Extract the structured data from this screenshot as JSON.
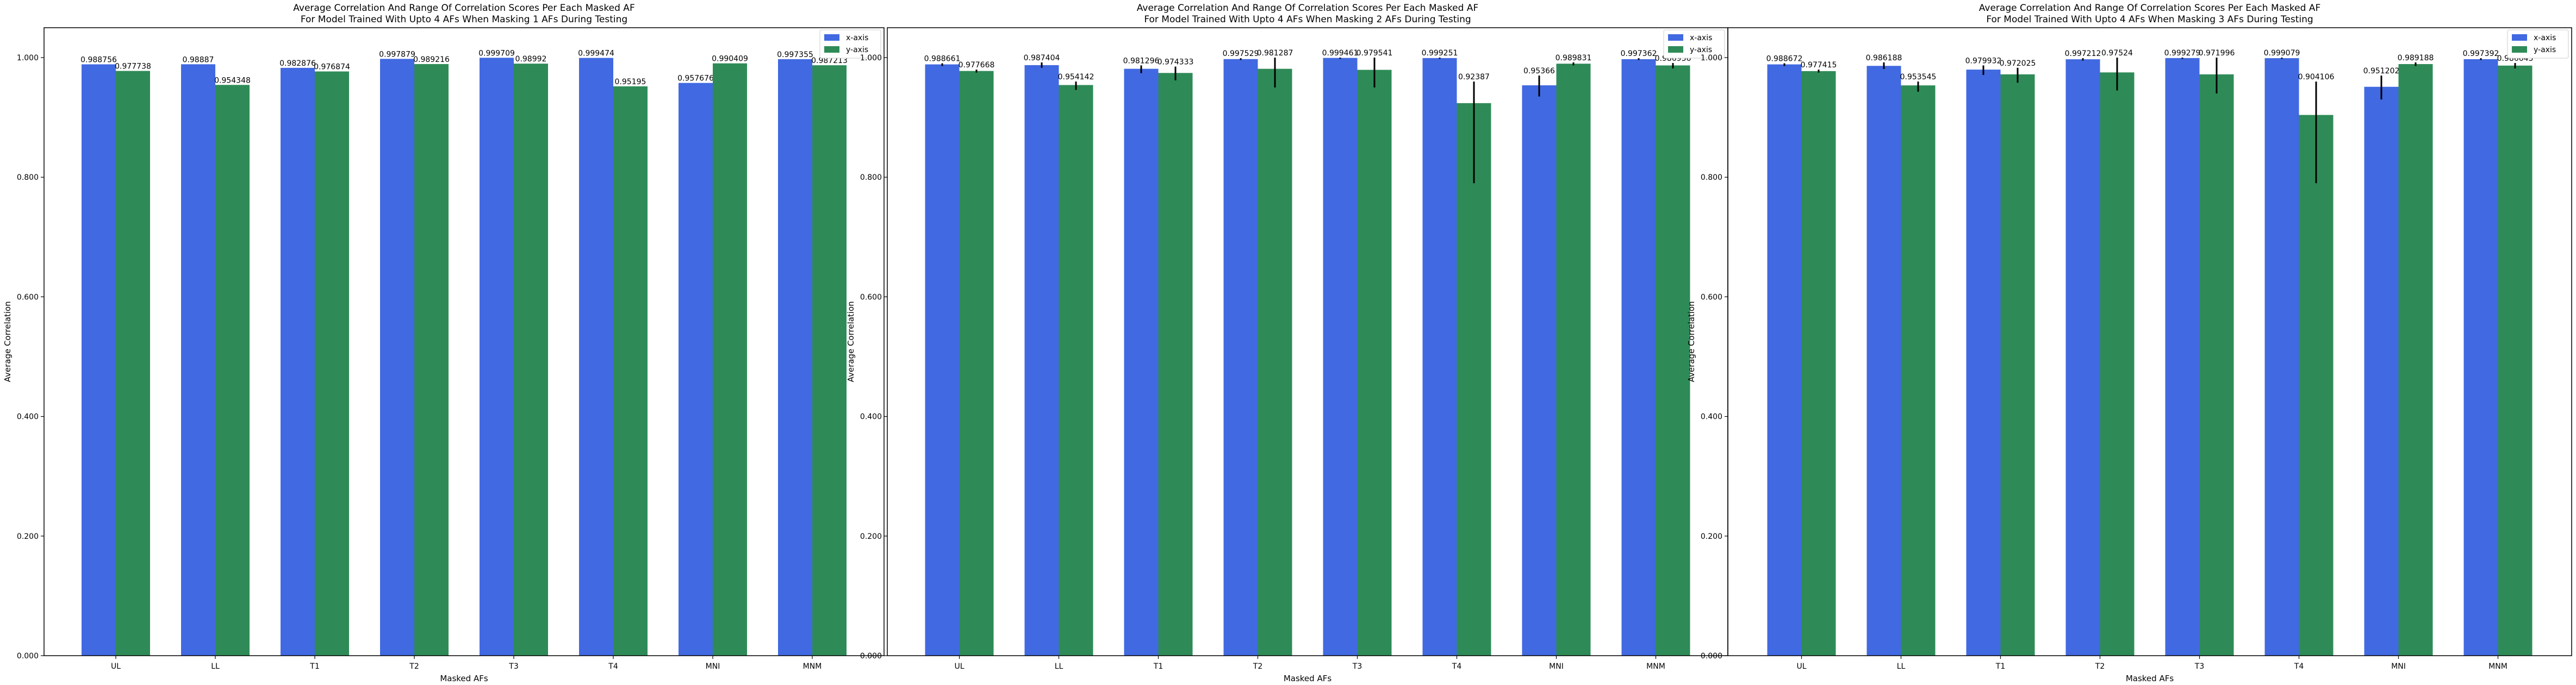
{
  "colors": {
    "x_axis": "#4169e1",
    "y_axis": "#2e8b57",
    "error": "#000000"
  },
  "chart_data": [
    {
      "type": "bar",
      "title_line1": "Average Correlation And Range Of Correlation Scores Per Each Masked AF",
      "title_line2": "For Model Trained With Upto 4 AFs When Masking 1 AFs During Testing",
      "xlabel": "Masked AFs",
      "ylabel": "Average Correlation",
      "ylim": [
        0,
        1.05
      ],
      "yticks": [
        "0.000",
        "0.200",
        "0.400",
        "0.600",
        "0.800",
        "1.000"
      ],
      "categories": [
        "UL",
        "LL",
        "T1",
        "T2",
        "T3",
        "T4",
        "MNI",
        "MNM"
      ],
      "legend": "top-right",
      "series": [
        {
          "name": "x-axis",
          "values": [
            0.988756,
            0.98887,
            0.982876,
            0.997879,
            0.999709,
            0.999474,
            0.957676,
            0.997355
          ],
          "labels": [
            "0.988756",
            "0.98887",
            "0.982876",
            "0.997879",
            "0.999709",
            "0.999474",
            "0.957676",
            "0.997355"
          ],
          "err": [
            [
              0.988756,
              0.988756
            ],
            [
              0.98887,
              0.98887
            ],
            [
              0.982876,
              0.982876
            ],
            [
              0.997879,
              0.997879
            ],
            [
              0.999709,
              0.999709
            ],
            [
              0.999474,
              0.999474
            ],
            [
              0.957676,
              0.957676
            ],
            [
              0.997355,
              0.997355
            ]
          ]
        },
        {
          "name": "y-axis",
          "values": [
            0.977738,
            0.954348,
            0.976874,
            0.989216,
            0.98992,
            0.95195,
            0.990409,
            0.987213
          ],
          "labels": [
            "0.977738",
            "0.954348",
            "0.976874",
            "0.989216",
            "0.98992",
            "0.95195",
            "0.990409",
            "0.987213"
          ],
          "err": [
            [
              0.977738,
              0.977738
            ],
            [
              0.954348,
              0.954348
            ],
            [
              0.976874,
              0.976874
            ],
            [
              0.989216,
              0.989216
            ],
            [
              0.98992,
              0.98992
            ],
            [
              0.95195,
              0.95195
            ],
            [
              0.990409,
              0.990409
            ],
            [
              0.987213,
              0.987213
            ]
          ]
        }
      ]
    },
    {
      "type": "bar",
      "title_line1": "Average Correlation And Range Of Correlation Scores Per Each Masked AF",
      "title_line2": "For Model Trained With Upto 4 AFs When Masking 2 AFs During Testing",
      "xlabel": "Masked AFs",
      "ylabel": "Average Correlation",
      "ylim": [
        0,
        1.05
      ],
      "yticks": [
        "0.000",
        "0.200",
        "0.400",
        "0.600",
        "0.800",
        "1.000"
      ],
      "categories": [
        "UL",
        "LL",
        "T1",
        "T2",
        "T3",
        "T4",
        "MNI",
        "MNM"
      ],
      "legend": "top-right",
      "series": [
        {
          "name": "x-axis",
          "values": [
            0.988661,
            0.987404,
            0.981296,
            0.997529,
            0.999461,
            0.999251,
            0.95366,
            0.997362
          ],
          "labels": [
            "0.988661",
            "0.987404",
            "0.981296",
            "0.997529",
            "0.999461",
            "0.999251",
            "0.95366",
            "0.997362"
          ],
          "err": [
            [
              0.986,
              0.9905
            ],
            [
              0.983,
              0.992
            ],
            [
              0.974,
              0.987
            ],
            [
              0.996,
              0.999
            ],
            [
              0.998,
              1.0
            ],
            [
              0.998,
              1.0
            ],
            [
              0.935,
              0.97
            ],
            [
              0.996,
              0.999
            ]
          ]
        },
        {
          "name": "y-axis",
          "values": [
            0.977668,
            0.954142,
            0.974333,
            0.981287,
            0.979541,
            0.92387,
            0.989831,
            0.986936
          ],
          "labels": [
            "0.977668",
            "0.954142",
            "0.974333",
            "0.981287",
            "0.979541",
            "0.92387",
            "0.989831",
            "0.986936"
          ],
          "err": [
            [
              0.975,
              0.98
            ],
            [
              0.946,
              0.96
            ],
            [
              0.962,
              0.985
            ],
            [
              0.95,
              1.0
            ],
            [
              0.95,
              1.0
            ],
            [
              0.79,
              0.96
            ],
            [
              0.987,
              0.992
            ],
            [
              0.982,
              0.991
            ]
          ]
        }
      ]
    },
    {
      "type": "bar",
      "title_line1": "Average Correlation And Range Of Correlation Scores Per Each Masked AF",
      "title_line2": "For Model Trained With Upto 4 AFs When Masking 3 AFs During Testing",
      "xlabel": "Masked AFs",
      "ylabel": "Average Correlation",
      "ylim": [
        0,
        1.05
      ],
      "yticks": [
        "0.000",
        "0.200",
        "0.400",
        "0.600",
        "0.800",
        "1.000"
      ],
      "categories": [
        "UL",
        "LL",
        "T1",
        "T2",
        "T3",
        "T4",
        "MNI",
        "MNM"
      ],
      "legend": "top-right",
      "series": [
        {
          "name": "x-axis",
          "values": [
            0.988672,
            0.986188,
            0.979932,
            0.997212,
            0.999279,
            0.999079,
            0.951202,
            0.997392
          ],
          "labels": [
            "0.988672",
            "0.986188",
            "0.979932",
            "0.997212",
            "0.999279",
            "0.999079",
            "0.951202",
            "0.997392"
          ],
          "err": [
            [
              0.986,
              0.9905
            ],
            [
              0.981,
              0.992
            ],
            [
              0.971,
              0.987
            ],
            [
              0.995,
              0.999
            ],
            [
              0.998,
              1.0
            ],
            [
              0.998,
              1.0
            ],
            [
              0.93,
              0.97
            ],
            [
              0.996,
              0.999
            ]
          ]
        },
        {
          "name": "y-axis",
          "values": [
            0.977415,
            0.953545,
            0.972025,
            0.97524,
            0.971996,
            0.904106,
            0.989188,
            0.986643
          ],
          "labels": [
            "0.977415",
            "0.953545",
            "0.972025",
            "0.97524",
            "0.971996",
            "0.904106",
            "0.989188",
            "0.986643"
          ],
          "err": [
            [
              0.975,
              0.98
            ],
            [
              0.943,
              0.96
            ],
            [
              0.958,
              0.983
            ],
            [
              0.945,
              1.0
            ],
            [
              0.94,
              1.0
            ],
            [
              0.79,
              0.96
            ],
            [
              0.986,
              0.992
            ],
            [
              0.982,
              0.991
            ]
          ]
        }
      ]
    }
  ]
}
